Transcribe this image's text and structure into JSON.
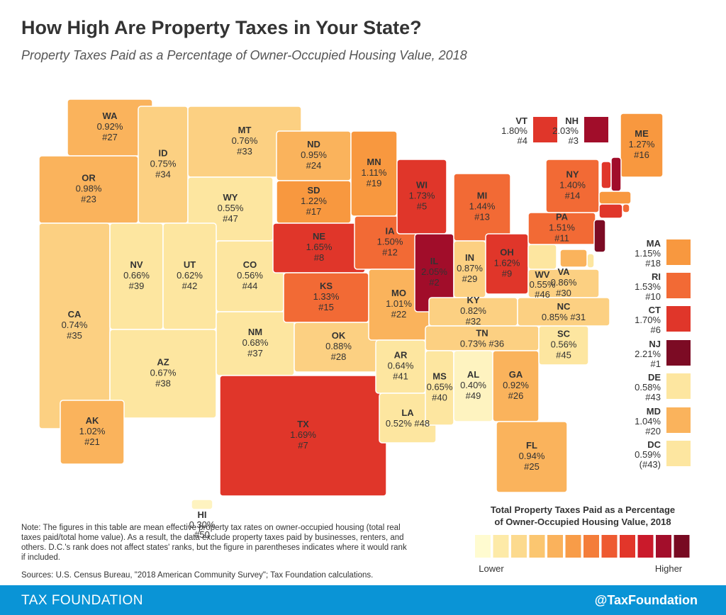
{
  "header": {
    "title": "How High Are Property Taxes in Your State?",
    "subtitle": "Property Taxes Paid as a Percentage of Owner-Occupied Housing Value, 2018"
  },
  "states": [
    {
      "abbr": "WA",
      "rate": "0.92%",
      "rank": "#27",
      "color": "#fab35c"
    },
    {
      "abbr": "OR",
      "rate": "0.98%",
      "rank": "#23",
      "color": "#fab35c"
    },
    {
      "abbr": "CA",
      "rate": "0.74%",
      "rank": "#35",
      "color": "#fcd082"
    },
    {
      "abbr": "NV",
      "rate": "0.66%",
      "rank": "#39",
      "color": "#fde6a0"
    },
    {
      "abbr": "ID",
      "rate": "0.75%",
      "rank": "#34",
      "color": "#fcd082"
    },
    {
      "abbr": "MT",
      "rate": "0.76%",
      "rank": "#33",
      "color": "#fcd082"
    },
    {
      "abbr": "WY",
      "rate": "0.55%",
      "rank": "#47",
      "color": "#fde6a0"
    },
    {
      "abbr": "UT",
      "rate": "0.62%",
      "rank": "#42",
      "color": "#fde6a0"
    },
    {
      "abbr": "CO",
      "rate": "0.56%",
      "rank": "#44",
      "color": "#fde6a0"
    },
    {
      "abbr": "AZ",
      "rate": "0.67%",
      "rank": "#38",
      "color": "#fde6a0"
    },
    {
      "abbr": "NM",
      "rate": "0.68%",
      "rank": "#37",
      "color": "#fde6a0"
    },
    {
      "abbr": "ND",
      "rate": "0.95%",
      "rank": "#24",
      "color": "#fab35c"
    },
    {
      "abbr": "SD",
      "rate": "1.22%",
      "rank": "#17",
      "color": "#f8983f"
    },
    {
      "abbr": "NE",
      "rate": "1.65%",
      "rank": "#8",
      "color": "#e0362a"
    },
    {
      "abbr": "KS",
      "rate": "1.33%",
      "rank": "#15",
      "color": "#f26a35"
    },
    {
      "abbr": "OK",
      "rate": "0.88%",
      "rank": "#28",
      "color": "#fcd082"
    },
    {
      "abbr": "TX",
      "rate": "1.69%",
      "rank": "#7",
      "color": "#e0362a"
    },
    {
      "abbr": "MN",
      "rate": "1.11%",
      "rank": "#19",
      "color": "#f8983f"
    },
    {
      "abbr": "IA",
      "rate": "1.50%",
      "rank": "#12",
      "color": "#f26a35"
    },
    {
      "abbr": "MO",
      "rate": "1.01%",
      "rank": "#22",
      "color": "#fab35c"
    },
    {
      "abbr": "AR",
      "rate": "0.64%",
      "rank": "#41",
      "color": "#fde6a0"
    },
    {
      "abbr": "LA",
      "rate": "0.52%",
      "rank": "#48",
      "color": "#fde6a0"
    },
    {
      "abbr": "WI",
      "rate": "1.73%",
      "rank": "#5",
      "color": "#e0362a"
    },
    {
      "abbr": "IL",
      "rate": "2.05%",
      "rank": "#2",
      "color": "#a10d2a"
    },
    {
      "abbr": "MI",
      "rate": "1.44%",
      "rank": "#13",
      "color": "#f26a35"
    },
    {
      "abbr": "IN",
      "rate": "0.87%",
      "rank": "#29",
      "color": "#fcd082"
    },
    {
      "abbr": "OH",
      "rate": "1.62%",
      "rank": "#9",
      "color": "#e0362a"
    },
    {
      "abbr": "KY",
      "rate": "0.82%",
      "rank": "#32",
      "color": "#fcd082"
    },
    {
      "abbr": "TN",
      "rate": "0.73%",
      "rank": "#36",
      "color": "#fcd082"
    },
    {
      "abbr": "MS",
      "rate": "0.65%",
      "rank": "#40",
      "color": "#fde6a0"
    },
    {
      "abbr": "AL",
      "rate": "0.40%",
      "rank": "#49",
      "color": "#fef3c0"
    },
    {
      "abbr": "GA",
      "rate": "0.92%",
      "rank": "#26",
      "color": "#fab35c"
    },
    {
      "abbr": "FL",
      "rate": "0.94%",
      "rank": "#25",
      "color": "#fab35c"
    },
    {
      "abbr": "SC",
      "rate": "0.56%",
      "rank": "#45",
      "color": "#fde6a0"
    },
    {
      "abbr": "NC",
      "rate": "0.85%",
      "rank": "#31",
      "color": "#fcd082"
    },
    {
      "abbr": "VA",
      "rate": "0.86%",
      "rank": "#30",
      "color": "#fcd082"
    },
    {
      "abbr": "WV",
      "rate": "0.55%",
      "rank": "#46",
      "color": "#fde6a0"
    },
    {
      "abbr": "PA",
      "rate": "1.51%",
      "rank": "#11",
      "color": "#f26a35"
    },
    {
      "abbr": "NY",
      "rate": "1.40%",
      "rank": "#14",
      "color": "#f26a35"
    },
    {
      "abbr": "ME",
      "rate": "1.27%",
      "rank": "#16",
      "color": "#f8983f"
    },
    {
      "abbr": "VT",
      "rate": "1.80%",
      "rank": "#4",
      "color": "#e0362a"
    },
    {
      "abbr": "NH",
      "rate": "2.03%",
      "rank": "#3",
      "color": "#a10d2a"
    },
    {
      "abbr": "MA",
      "rate": "1.15%",
      "rank": "#18",
      "color": "#f8983f"
    },
    {
      "abbr": "RI",
      "rate": "1.53%",
      "rank": "#10",
      "color": "#f26a35"
    },
    {
      "abbr": "CT",
      "rate": "1.70%",
      "rank": "#6",
      "color": "#e0362a"
    },
    {
      "abbr": "NJ",
      "rate": "2.21%",
      "rank": "#1",
      "color": "#7c0b24"
    },
    {
      "abbr": "DE",
      "rate": "0.58%",
      "rank": "#43",
      "color": "#fde6a0"
    },
    {
      "abbr": "MD",
      "rate": "1.04%",
      "rank": "#20",
      "color": "#fab35c"
    },
    {
      "abbr": "DC",
      "rate": "0.59%",
      "rank": "(#43)",
      "color": "#fde6a0"
    },
    {
      "abbr": "AK",
      "rate": "1.02%",
      "rank": "#21",
      "color": "#fab35c"
    },
    {
      "abbr": "HI",
      "rate": "0.30%",
      "rank": "#50",
      "color": "#fef3c0"
    }
  ],
  "legend": {
    "title": [
      "Total Property Taxes Paid as a Percentage",
      "of Owner-Occupied Housing Value, 2018"
    ],
    "colors": [
      "#fffbd0",
      "#fdeaa8",
      "#fcda8e",
      "#fbc670",
      "#fab25c",
      "#f89c48",
      "#f47d3a",
      "#ee5a31",
      "#e2362a",
      "#ca1a2b",
      "#a30e2b",
      "#780a22"
    ],
    "low": "Lower",
    "high": "Higher"
  },
  "note": "Note: The figures in this table are mean effective property tax rates on owner-occupied housing (total real taxes paid/total home value). As a result, the data exclude property taxes paid by businesses, renters, and others. D.C.'s rank does not affect states' ranks, but the figure in parentheses indicates where it would rank if included.",
  "sources": "Sources: U.S. Census Bureau, \"2018 American Community Survey\"; Tax Foundation calculations.",
  "footer": {
    "brand": "TAX FOUNDATION",
    "handle": "@TaxFoundation"
  }
}
